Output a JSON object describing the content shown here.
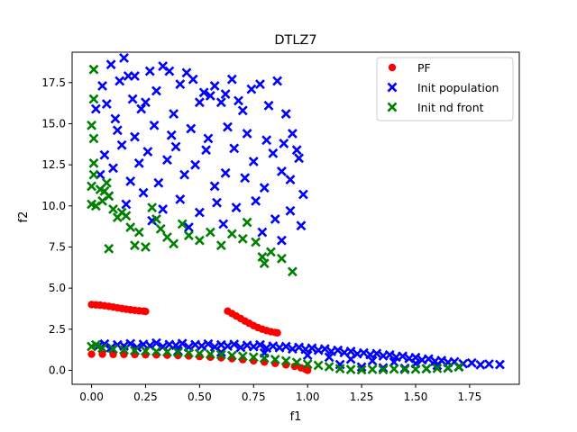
{
  "chart_data": {
    "type": "scatter",
    "title": "DTLZ7",
    "xlabel": "f1",
    "ylabel": "f2",
    "xlim": [
      -0.09,
      1.98
    ],
    "ylim": [
      -0.85,
      19.35
    ],
    "xticks": [
      0.0,
      0.25,
      0.5,
      0.75,
      1.0,
      1.25,
      1.5,
      1.75
    ],
    "xtick_labels": [
      "0.00",
      "0.25",
      "0.50",
      "0.75",
      "1.00",
      "1.25",
      "1.50",
      "1.75"
    ],
    "yticks": [
      0.0,
      2.5,
      5.0,
      7.5,
      10.0,
      12.5,
      15.0,
      17.5
    ],
    "ytick_labels": [
      "0.0",
      "2.5",
      "5.0",
      "7.5",
      "10.0",
      "12.5",
      "15.0",
      "17.5"
    ],
    "grid": false,
    "legend_position": "top-right",
    "series": [
      {
        "name": "PF",
        "marker": "circle",
        "color": "#ff0000",
        "points": [
          [
            0.0,
            4.0
          ],
          [
            0.02,
            3.98
          ],
          [
            0.04,
            3.96
          ],
          [
            0.06,
            3.93
          ],
          [
            0.08,
            3.89
          ],
          [
            0.1,
            3.85
          ],
          [
            0.12,
            3.8
          ],
          [
            0.14,
            3.76
          ],
          [
            0.16,
            3.72
          ],
          [
            0.18,
            3.68
          ],
          [
            0.2,
            3.65
          ],
          [
            0.22,
            3.62
          ],
          [
            0.24,
            3.6
          ],
          [
            0.25,
            3.58
          ],
          [
            0.63,
            3.6
          ],
          [
            0.65,
            3.45
          ],
          [
            0.67,
            3.3
          ],
          [
            0.69,
            3.15
          ],
          [
            0.71,
            3.0
          ],
          [
            0.73,
            2.86
          ],
          [
            0.75,
            2.72
          ],
          [
            0.77,
            2.6
          ],
          [
            0.79,
            2.5
          ],
          [
            0.81,
            2.42
          ],
          [
            0.83,
            2.35
          ],
          [
            0.85,
            2.3
          ],
          [
            0.86,
            2.28
          ],
          [
            0.0,
            0.98
          ],
          [
            0.05,
            0.98
          ],
          [
            0.1,
            0.97
          ],
          [
            0.15,
            0.97
          ],
          [
            0.2,
            0.96
          ],
          [
            0.25,
            0.95
          ],
          [
            0.3,
            0.94
          ],
          [
            0.35,
            0.92
          ],
          [
            0.4,
            0.9
          ],
          [
            0.45,
            0.87
          ],
          [
            0.5,
            0.84
          ],
          [
            0.55,
            0.8
          ],
          [
            0.6,
            0.76
          ],
          [
            0.65,
            0.71
          ],
          [
            0.7,
            0.65
          ],
          [
            0.75,
            0.58
          ],
          [
            0.8,
            0.5
          ],
          [
            0.85,
            0.42
          ],
          [
            0.9,
            0.33
          ],
          [
            0.94,
            0.24
          ],
          [
            0.97,
            0.15
          ],
          [
            0.99,
            0.07
          ],
          [
            1.0,
            0.0
          ]
        ]
      },
      {
        "name": "Init population",
        "marker": "x",
        "color": "#0000ff",
        "points": [
          [
            0.02,
            15.9
          ],
          [
            0.05,
            17.3
          ],
          [
            0.07,
            16.2
          ],
          [
            0.09,
            18.6
          ],
          [
            0.11,
            15.3
          ],
          [
            0.13,
            17.6
          ],
          [
            0.15,
            19.0
          ],
          [
            0.17,
            17.9
          ],
          [
            0.19,
            16.5
          ],
          [
            0.2,
            17.9
          ],
          [
            0.23,
            15.9
          ],
          [
            0.25,
            16.3
          ],
          [
            0.27,
            18.2
          ],
          [
            0.3,
            17.0
          ],
          [
            0.33,
            18.5
          ],
          [
            0.36,
            18.2
          ],
          [
            0.38,
            15.6
          ],
          [
            0.41,
            17.4
          ],
          [
            0.44,
            18.1
          ],
          [
            0.47,
            17.7
          ],
          [
            0.5,
            16.3
          ],
          [
            0.52,
            16.9
          ],
          [
            0.55,
            16.7
          ],
          [
            0.57,
            17.3
          ],
          [
            0.6,
            16.3
          ],
          [
            0.62,
            16.8
          ],
          [
            0.65,
            17.7
          ],
          [
            0.68,
            16.4
          ],
          [
            0.7,
            15.8
          ],
          [
            0.74,
            17.1
          ],
          [
            0.78,
            17.4
          ],
          [
            0.82,
            16.1
          ],
          [
            0.86,
            17.6
          ],
          [
            0.9,
            15.6
          ],
          [
            0.93,
            14.4
          ],
          [
            0.06,
            13.1
          ],
          [
            0.1,
            12.3
          ],
          [
            0.14,
            13.7
          ],
          [
            0.18,
            11.5
          ],
          [
            0.22,
            12.6
          ],
          [
            0.26,
            13.3
          ],
          [
            0.31,
            11.4
          ],
          [
            0.35,
            12.8
          ],
          [
            0.39,
            13.6
          ],
          [
            0.43,
            11.9
          ],
          [
            0.48,
            12.5
          ],
          [
            0.53,
            13.4
          ],
          [
            0.57,
            11.2
          ],
          [
            0.62,
            12.0
          ],
          [
            0.66,
            13.5
          ],
          [
            0.71,
            11.7
          ],
          [
            0.75,
            12.7
          ],
          [
            0.8,
            11.1
          ],
          [
            0.84,
            13.2
          ],
          [
            0.88,
            12.1
          ],
          [
            0.92,
            11.6
          ],
          [
            0.96,
            12.9
          ],
          [
            0.98,
            10.7
          ],
          [
            0.08,
            10.6
          ],
          [
            0.16,
            10.1
          ],
          [
            0.24,
            10.8
          ],
          [
            0.33,
            9.8
          ],
          [
            0.41,
            10.4
          ],
          [
            0.5,
            9.6
          ],
          [
            0.58,
            10.2
          ],
          [
            0.67,
            9.9
          ],
          [
            0.76,
            10.3
          ],
          [
            0.85,
            9.2
          ],
          [
            0.92,
            9.7
          ],
          [
            0.97,
            8.8
          ],
          [
            0.12,
            14.6
          ],
          [
            0.2,
            14.2
          ],
          [
            0.29,
            14.9
          ],
          [
            0.37,
            14.3
          ],
          [
            0.46,
            14.7
          ],
          [
            0.54,
            14.1
          ],
          [
            0.63,
            14.8
          ],
          [
            0.72,
            14.4
          ],
          [
            0.81,
            14.0
          ],
          [
            0.89,
            13.8
          ],
          [
            0.95,
            13.4
          ],
          [
            0.04,
            11.9
          ],
          [
            0.28,
            9.1
          ],
          [
            0.45,
            8.7
          ],
          [
            0.61,
            8.9
          ],
          [
            0.79,
            8.4
          ],
          [
            0.88,
            7.9
          ],
          [
            0.03,
            1.45
          ],
          [
            0.06,
            1.6
          ],
          [
            0.09,
            1.38
          ],
          [
            0.12,
            1.55
          ],
          [
            0.15,
            1.48
          ],
          [
            0.18,
            1.62
          ],
          [
            0.21,
            1.4
          ],
          [
            0.24,
            1.58
          ],
          [
            0.27,
            1.5
          ],
          [
            0.3,
            1.66
          ],
          [
            0.33,
            1.44
          ],
          [
            0.36,
            1.57
          ],
          [
            0.39,
            1.52
          ],
          [
            0.42,
            1.63
          ],
          [
            0.45,
            1.41
          ],
          [
            0.48,
            1.56
          ],
          [
            0.51,
            1.49
          ],
          [
            0.54,
            1.6
          ],
          [
            0.57,
            1.42
          ],
          [
            0.6,
            1.55
          ],
          [
            0.63,
            1.47
          ],
          [
            0.66,
            1.58
          ],
          [
            0.69,
            1.39
          ],
          [
            0.72,
            1.52
          ],
          [
            0.75,
            1.44
          ],
          [
            0.78,
            1.55
          ],
          [
            0.81,
            1.36
          ],
          [
            0.84,
            1.47
          ],
          [
            0.87,
            1.38
          ],
          [
            0.9,
            1.45
          ],
          [
            0.93,
            1.3
          ],
          [
            0.96,
            1.4
          ],
          [
            0.99,
            1.28
          ],
          [
            1.02,
            1.35
          ],
          [
            1.05,
            1.22
          ],
          [
            1.08,
            1.3
          ],
          [
            1.11,
            1.15
          ],
          [
            1.14,
            1.22
          ],
          [
            1.17,
            1.08
          ],
          [
            1.2,
            1.15
          ],
          [
            1.23,
            1.0
          ],
          [
            1.26,
            1.06
          ],
          [
            1.29,
            0.95
          ],
          [
            1.32,
            1.02
          ],
          [
            1.35,
            0.88
          ],
          [
            1.38,
            0.94
          ],
          [
            1.41,
            0.8
          ],
          [
            1.44,
            0.86
          ],
          [
            1.47,
            0.72
          ],
          [
            1.5,
            0.78
          ],
          [
            1.53,
            0.63
          ],
          [
            1.56,
            0.69
          ],
          [
            1.59,
            0.55
          ],
          [
            1.62,
            0.6
          ],
          [
            1.65,
            0.48
          ],
          [
            1.68,
            0.52
          ],
          [
            1.72,
            0.4
          ],
          [
            1.76,
            0.45
          ],
          [
            1.8,
            0.34
          ],
          [
            1.84,
            0.38
          ],
          [
            1.89,
            0.35
          ],
          [
            0.2,
            1.2
          ],
          [
            0.4,
            1.18
          ],
          [
            0.6,
            1.1
          ],
          [
            0.8,
            1.05
          ],
          [
            1.0,
            0.92
          ],
          [
            1.1,
            0.8
          ],
          [
            1.2,
            0.68
          ],
          [
            1.3,
            0.58
          ],
          [
            1.4,
            0.5
          ],
          [
            1.5,
            0.42
          ],
          [
            1.6,
            0.3
          ],
          [
            1.7,
            0.22
          ],
          [
            1.15,
            0.35
          ],
          [
            1.25,
            0.2
          ],
          [
            1.35,
            0.15
          ],
          [
            1.45,
            0.12
          ],
          [
            1.55,
            0.1
          ],
          [
            1.65,
            0.14
          ]
        ]
      },
      {
        "name": "Init nd front",
        "marker": "x",
        "color": "#008000",
        "points": [
          [
            0.01,
            18.3
          ],
          [
            0.01,
            16.5
          ],
          [
            0.0,
            14.9
          ],
          [
            0.01,
            14.1
          ],
          [
            0.01,
            12.6
          ],
          [
            0.01,
            11.9
          ],
          [
            0.0,
            11.2
          ],
          [
            0.0,
            10.1
          ],
          [
            0.02,
            10.0
          ],
          [
            0.04,
            11.0
          ],
          [
            0.05,
            10.3
          ],
          [
            0.06,
            10.9
          ],
          [
            0.07,
            11.4
          ],
          [
            0.08,
            10.6
          ],
          [
            0.1,
            9.8
          ],
          [
            0.12,
            9.3
          ],
          [
            0.14,
            9.6
          ],
          [
            0.16,
            9.4
          ],
          [
            0.18,
            8.7
          ],
          [
            0.2,
            7.6
          ],
          [
            0.22,
            8.4
          ],
          [
            0.25,
            7.5
          ],
          [
            0.28,
            9.9
          ],
          [
            0.3,
            9.2
          ],
          [
            0.32,
            8.6
          ],
          [
            0.35,
            8.1
          ],
          [
            0.38,
            7.7
          ],
          [
            0.42,
            8.9
          ],
          [
            0.45,
            8.2
          ],
          [
            0.5,
            7.9
          ],
          [
            0.55,
            8.4
          ],
          [
            0.6,
            7.6
          ],
          [
            0.65,
            8.3
          ],
          [
            0.7,
            8.0
          ],
          [
            0.72,
            9.0
          ],
          [
            0.76,
            7.8
          ],
          [
            0.79,
            6.9
          ],
          [
            0.8,
            6.5
          ],
          [
            0.83,
            7.2
          ],
          [
            0.88,
            6.8
          ],
          [
            0.93,
            6.0
          ],
          [
            0.08,
            7.4
          ],
          [
            0.0,
            1.45
          ],
          [
            0.02,
            1.55
          ],
          [
            0.05,
            1.35
          ],
          [
            0.1,
            1.3
          ],
          [
            0.15,
            1.25
          ],
          [
            0.2,
            1.2
          ],
          [
            0.25,
            1.18
          ],
          [
            0.3,
            1.15
          ],
          [
            0.35,
            1.12
          ],
          [
            0.4,
            1.1
          ],
          [
            0.45,
            1.06
          ],
          [
            0.5,
            1.02
          ],
          [
            0.55,
            0.98
          ],
          [
            0.6,
            0.95
          ],
          [
            0.65,
            0.9
          ],
          [
            0.7,
            0.86
          ],
          [
            0.75,
            0.8
          ],
          [
            0.8,
            0.74
          ],
          [
            0.85,
            0.66
          ],
          [
            0.9,
            0.58
          ],
          [
            0.95,
            0.48
          ],
          [
            1.0,
            0.38
          ],
          [
            1.05,
            0.3
          ],
          [
            1.1,
            0.22
          ],
          [
            1.15,
            0.1
          ],
          [
            1.2,
            0.05
          ],
          [
            1.25,
            0.03
          ],
          [
            1.3,
            0.06
          ],
          [
            1.35,
            0.04
          ],
          [
            1.4,
            0.08
          ],
          [
            1.45,
            0.05
          ],
          [
            1.5,
            0.07
          ],
          [
            1.55,
            0.09
          ],
          [
            1.6,
            0.12
          ],
          [
            1.65,
            0.15
          ],
          [
            1.7,
            0.2
          ]
        ]
      }
    ]
  }
}
